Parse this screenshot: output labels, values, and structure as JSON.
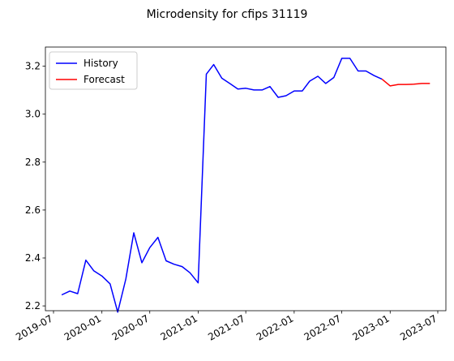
{
  "chart_data": {
    "type": "line",
    "title": "Microdensity for cfips 31119",
    "xlabel": "",
    "ylabel": "",
    "ylim": [
      2.18,
      3.28
    ],
    "xlim": [
      "2019-07-01",
      "2023-07-01"
    ],
    "x_ticks": [
      "2019-07",
      "2020-01",
      "2020-07",
      "2021-01",
      "2021-07",
      "2022-01",
      "2022-07",
      "2023-01",
      "2023-07"
    ],
    "y_ticks": [
      "2.2",
      "2.4",
      "2.6",
      "2.8",
      "3.0",
      "3.2"
    ],
    "grid": false,
    "legend": {
      "placement": "upper-left"
    },
    "series": [
      {
        "name": "History",
        "color": "#0000ff",
        "points": [
          [
            "2019-08-01",
            2.246
          ],
          [
            "2019-09-01",
            2.262
          ],
          [
            "2019-10-01",
            2.251
          ],
          [
            "2019-11-01",
            2.391
          ],
          [
            "2019-12-01",
            2.347
          ],
          [
            "2020-01-01",
            2.325
          ],
          [
            "2020-02-01",
            2.292
          ],
          [
            "2020-03-01",
            2.174
          ],
          [
            "2020-04-01",
            2.312
          ],
          [
            "2020-05-01",
            2.505
          ],
          [
            "2020-06-01",
            2.38
          ],
          [
            "2020-07-01",
            2.443
          ],
          [
            "2020-08-01",
            2.486
          ],
          [
            "2020-09-01",
            2.388
          ],
          [
            "2020-10-01",
            2.374
          ],
          [
            "2020-11-01",
            2.364
          ],
          [
            "2020-12-01",
            2.338
          ],
          [
            "2021-01-01",
            2.296
          ],
          [
            "2021-02-01",
            3.167
          ],
          [
            "2021-03-01",
            3.207
          ],
          [
            "2021-04-01",
            3.15
          ],
          [
            "2021-05-01",
            3.128
          ],
          [
            "2021-06-01",
            3.105
          ],
          [
            "2021-07-01",
            3.108
          ],
          [
            "2021-08-01",
            3.101
          ],
          [
            "2021-09-01",
            3.101
          ],
          [
            "2021-10-01",
            3.115
          ],
          [
            "2021-11-01",
            3.07
          ],
          [
            "2021-12-01",
            3.077
          ],
          [
            "2022-01-01",
            3.097
          ],
          [
            "2022-02-01",
            3.097
          ],
          [
            "2022-03-01",
            3.138
          ],
          [
            "2022-04-01",
            3.158
          ],
          [
            "2022-05-01",
            3.128
          ],
          [
            "2022-06-01",
            3.153
          ],
          [
            "2022-07-01",
            3.233
          ],
          [
            "2022-08-01",
            3.233
          ],
          [
            "2022-09-01",
            3.18
          ],
          [
            "2022-10-01",
            3.18
          ],
          [
            "2022-11-01",
            3.161
          ],
          [
            "2022-12-01",
            3.146
          ]
        ]
      },
      {
        "name": "Forecast",
        "color": "#ff0000",
        "points": [
          [
            "2022-12-01",
            3.146
          ],
          [
            "2023-01-01",
            3.118
          ],
          [
            "2023-02-01",
            3.124
          ],
          [
            "2023-03-01",
            3.124
          ],
          [
            "2023-04-01",
            3.125
          ],
          [
            "2023-05-01",
            3.128
          ],
          [
            "2023-06-01",
            3.128
          ]
        ]
      }
    ]
  }
}
